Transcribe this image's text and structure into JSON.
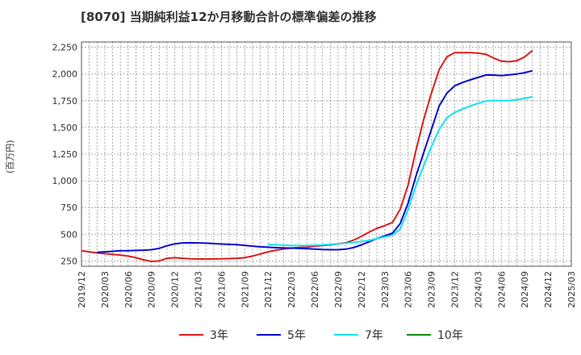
{
  "title": "[8070]  当期純利益12か月移動合計の標準偏差の推移",
  "y_axis_label": "(百万円)",
  "chart_data": {
    "type": "line",
    "title": "[8070]  当期純利益12か月移動合計の標準偏差の推移",
    "ylabel": "(百万円)",
    "xlabel": "",
    "ylim": [
      200,
      2300
    ],
    "x_ticks": [
      "2019/12",
      "2020/03",
      "2020/06",
      "2020/09",
      "2020/12",
      "2021/03",
      "2021/06",
      "2021/09",
      "2021/12",
      "2022/03",
      "2022/06",
      "2022/09",
      "2022/12",
      "2023/03",
      "2023/06",
      "2023/09",
      "2023/12",
      "2024/03",
      "2024/06",
      "2024/09",
      "2024/12",
      "2025/03"
    ],
    "y_ticks": [
      250,
      500,
      750,
      1000,
      1250,
      1500,
      1750,
      2000,
      2250
    ],
    "y_tick_labels": [
      "250",
      "500",
      "750",
      "1,000",
      "1,250",
      "1,500",
      "1,750",
      "2,000",
      "2,250"
    ],
    "grid": true,
    "legend_position": "bottom",
    "series": [
      {
        "name": "3年",
        "color": "#dd1c1c",
        "start": "2019/12",
        "values": [
          345,
          335,
          325,
          318,
          312,
          305,
          295,
          280,
          260,
          245,
          250,
          275,
          280,
          275,
          270,
          268,
          268,
          268,
          270,
          272,
          275,
          280,
          295,
          315,
          335,
          350,
          362,
          370,
          375,
          380,
          388,
          395,
          400,
          410,
          420,
          445,
          480,
          520,
          555,
          580,
          610,
          735,
          960,
          1280,
          1570,
          1820,
          2040,
          2160,
          2200,
          2200,
          2200,
          2195,
          2185,
          2150,
          2120,
          2115,
          2125,
          2160,
          2220
        ]
      },
      {
        "name": "5年",
        "color": "#0a0ad0",
        "start": "2019/12",
        "values": [
          null,
          null,
          330,
          335,
          340,
          345,
          345,
          348,
          350,
          355,
          368,
          392,
          410,
          418,
          420,
          418,
          416,
          412,
          408,
          405,
          402,
          396,
          388,
          382,
          378,
          374,
          372,
          370,
          368,
          365,
          360,
          356,
          355,
          355,
          360,
          375,
          400,
          430,
          460,
          485,
          510,
          600,
          790,
          1040,
          1260,
          1480,
          1700,
          1820,
          1890,
          1920,
          1945,
          1968,
          1990,
          1990,
          1985,
          1992,
          2000,
          2012,
          2030
        ]
      },
      {
        "name": "7年",
        "color": "#10e5f0",
        "start": "2019/12",
        "values": [
          null,
          null,
          null,
          null,
          null,
          null,
          null,
          null,
          null,
          null,
          null,
          null,
          null,
          null,
          null,
          null,
          null,
          null,
          null,
          null,
          null,
          null,
          null,
          null,
          403,
          400,
          397,
          395,
          395,
          395,
          397,
          400,
          405,
          410,
          415,
          422,
          432,
          442,
          460,
          475,
          492,
          550,
          730,
          950,
          1140,
          1320,
          1480,
          1590,
          1640,
          1672,
          1700,
          1725,
          1746,
          1752,
          1750,
          1752,
          1760,
          1772,
          1788
        ]
      },
      {
        "name": "10年",
        "color": "#118c11",
        "start": "2019/12",
        "values": []
      }
    ]
  }
}
